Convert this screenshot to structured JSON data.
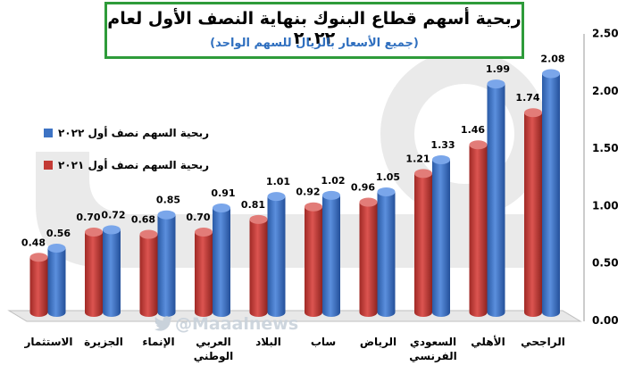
{
  "watermark": "@Maaalnews",
  "legend_position": "left",
  "colors": {
    "2022": "#3d73c4",
    "2021": "#c33a35",
    "frame": "#2e9b3a",
    "subtitle": "#2f6fbf"
  },
  "chart_data": {
    "type": "bar",
    "title": "ربحية أسهم قطاع البنوك بنهاية النصف الأول لعام ٢٠٢٢",
    "subtitle": "(جميع الأسعار بالريال للسهم الواحد)",
    "xlabel": "",
    "ylabel": "",
    "ylim": [
      0,
      2.5
    ],
    "yticks": [
      "0.00",
      "0.50",
      "1.00",
      "1.50",
      "2.00",
      "2.50"
    ],
    "grid": false,
    "categories": [
      "الراجحي",
      "الأهلي",
      "السعودي الفرنسي",
      "الرياض",
      "ساب",
      "البلاد",
      "العربي الوطني",
      "الإنماء",
      "الجزيرة",
      "الاستثمار"
    ],
    "category_lines": [
      [
        "الراجحي"
      ],
      [
        "الأهلي"
      ],
      [
        "السعودي",
        "الفرنسي"
      ],
      [
        "الرياض"
      ],
      [
        "ساب"
      ],
      [
        "البلاد"
      ],
      [
        "العربي",
        "الوطني"
      ],
      [
        "الإنماء"
      ],
      [
        "الجزيرة"
      ],
      [
        "الاستثمار"
      ]
    ],
    "series": [
      {
        "name": "ربحية السهم نصف أول ٢٠٢٢",
        "key": "2022",
        "values": [
          2.08,
          1.99,
          1.33,
          1.05,
          1.02,
          1.01,
          0.91,
          0.85,
          0.72,
          0.56
        ]
      },
      {
        "name": "ربحية السهم نصف أول ٢٠٢١",
        "key": "2021",
        "values": [
          1.74,
          1.46,
          1.21,
          0.96,
          0.92,
          0.81,
          0.7,
          0.68,
          0.7,
          0.48
        ]
      }
    ],
    "data_labels": {
      "2022": [
        "2.08",
        "1.99",
        "1.33",
        "1.05",
        "1.02",
        "1.01",
        "0.91",
        "0.85",
        "0.72",
        "0.56"
      ],
      "2021": [
        "1.74",
        "1.46",
        "1.21",
        "0.96",
        "0.92",
        "0.81",
        "0.70",
        "0.68",
        "0.70",
        "0.48"
      ]
    }
  }
}
